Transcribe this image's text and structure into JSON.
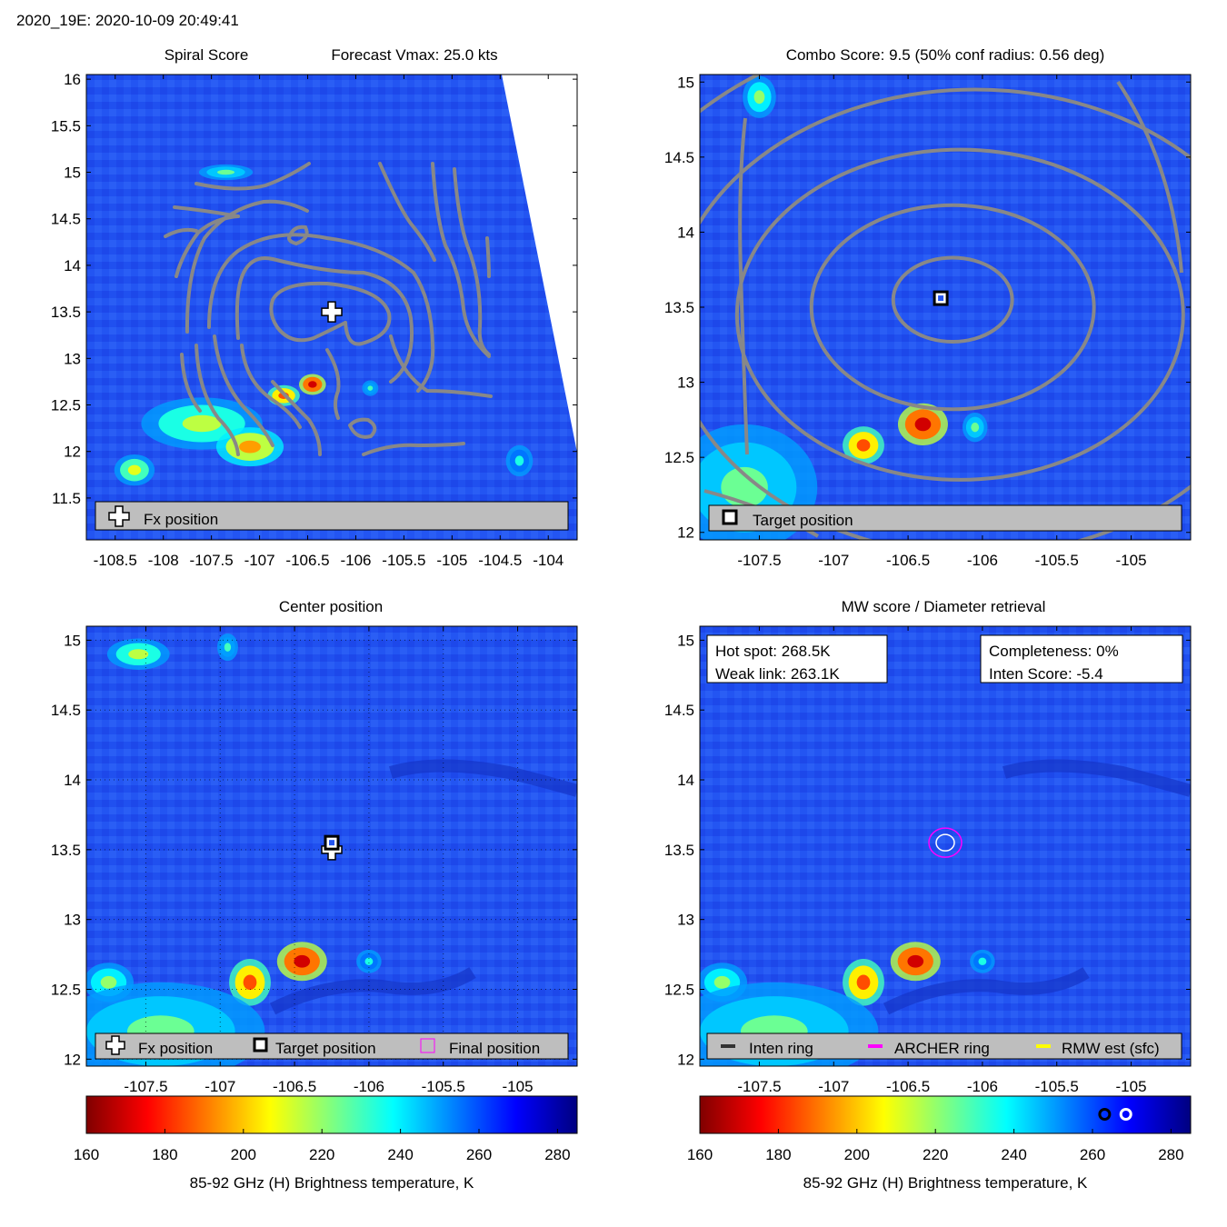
{
  "header": {
    "title": "2020_19E: 2020-10-09 20:49:41"
  },
  "colors": {
    "ocean": "#1f4ff0",
    "contour": "#888888",
    "legend_bg": "#bebebe",
    "archer_ring": "#ff00ff",
    "inten_ring": "#333333",
    "rmw": "#ffff00"
  },
  "chart_data": [
    {
      "type": "heatmap",
      "id": "spiral",
      "titles": [
        "Spiral Score",
        "Forecast Vmax: 25.0 kts"
      ],
      "xlim": [
        -108.8,
        -103.7
      ],
      "ylim": [
        11.05,
        16.05
      ],
      "xticks": [
        "-108.5",
        "-108",
        "-107.5",
        "-107",
        "-106.5",
        "-106",
        "-105.5",
        "-105",
        "-104.5",
        "-104"
      ],
      "yticks": [
        "11.5",
        "12",
        "12.5",
        "13",
        "13.5",
        "14",
        "14.5",
        "15",
        "15.5",
        "16"
      ],
      "xtick_values": [
        -108.5,
        -108,
        -107.5,
        -107,
        -106.5,
        -106,
        -105.5,
        -105,
        -104.5,
        -104
      ],
      "ytick_values": [
        11.5,
        12,
        12.5,
        13,
        13.5,
        14,
        14.5,
        15,
        15.5,
        16
      ],
      "markers": [
        {
          "kind": "fx-plus",
          "x": -106.25,
          "y": 13.5
        }
      ],
      "hotspots": [
        {
          "x": -107.6,
          "y": 12.3,
          "rx": 0.45,
          "ry": 0.2,
          "t": 215
        },
        {
          "x": -107.1,
          "y": 12.05,
          "rx": 0.25,
          "ry": 0.15,
          "t": 195
        },
        {
          "x": -106.75,
          "y": 12.6,
          "rx": 0.12,
          "ry": 0.08,
          "t": 185
        },
        {
          "x": -106.45,
          "y": 12.72,
          "rx": 0.1,
          "ry": 0.08,
          "t": 170
        },
        {
          "x": -105.85,
          "y": 12.68,
          "rx": 0.06,
          "ry": 0.06,
          "t": 230
        },
        {
          "x": -108.3,
          "y": 11.8,
          "rx": 0.15,
          "ry": 0.12,
          "t": 210
        },
        {
          "x": -107.35,
          "y": 15.0,
          "rx": 0.2,
          "ry": 0.06,
          "t": 225
        },
        {
          "x": -104.3,
          "y": 11.9,
          "rx": 0.1,
          "ry": 0.12,
          "t": 235
        }
      ],
      "legend": [
        "Fx position"
      ]
    },
    {
      "type": "heatmap",
      "id": "combo",
      "titles": [
        "Combo Score: 9.5  (50% conf radius: 0.56 deg)"
      ],
      "xlim": [
        -107.9,
        -104.6
      ],
      "ylim": [
        11.95,
        15.05
      ],
      "xticks": [
        "-107.5",
        "-107",
        "-106.5",
        "-106",
        "-105.5",
        "-105"
      ],
      "yticks": [
        "12",
        "12.5",
        "13",
        "13.5",
        "14",
        "14.5",
        "15"
      ],
      "xtick_values": [
        -107.5,
        -107,
        -106.5,
        -106,
        -105.5,
        -105
      ],
      "ytick_values": [
        12,
        12.5,
        13,
        13.5,
        14,
        14.5,
        15
      ],
      "markers": [
        {
          "kind": "target-square",
          "x": -106.28,
          "y": 13.56
        }
      ],
      "contour_rings": [
        {
          "x": -106.2,
          "y": 13.55,
          "rx": 0.4,
          "ry": 0.28
        },
        {
          "x": -106.2,
          "y": 13.5,
          "rx": 0.95,
          "ry": 0.68
        },
        {
          "x": -106.15,
          "y": 13.45,
          "rx": 1.5,
          "ry": 1.1
        },
        {
          "x": -106.05,
          "y": 13.4,
          "rx": 2.05,
          "ry": 1.55
        },
        {
          "x": -106.0,
          "y": 13.35,
          "rx": 2.7,
          "ry": 2.05
        }
      ],
      "hotspots": [
        {
          "x": -106.4,
          "y": 12.72,
          "rx": 0.12,
          "ry": 0.1,
          "t": 170
        },
        {
          "x": -106.8,
          "y": 12.58,
          "rx": 0.1,
          "ry": 0.09,
          "t": 185
        },
        {
          "x": -106.05,
          "y": 12.7,
          "rx": 0.06,
          "ry": 0.07,
          "t": 225
        },
        {
          "x": -107.6,
          "y": 12.3,
          "rx": 0.35,
          "ry": 0.3,
          "t": 225
        },
        {
          "x": -107.5,
          "y": 14.9,
          "rx": 0.08,
          "ry": 0.1,
          "t": 220
        }
      ],
      "legend": [
        "Target position"
      ]
    },
    {
      "type": "heatmap",
      "id": "center",
      "titles": [
        "Center position"
      ],
      "xlim": [
        -107.9,
        -104.6
      ],
      "ylim": [
        11.95,
        15.1
      ],
      "xticks": [
        "-107.5",
        "-107",
        "-106.5",
        "-106",
        "-105.5",
        "-105"
      ],
      "yticks": [
        "12",
        "12.5",
        "13",
        "13.5",
        "14",
        "14.5",
        "15"
      ],
      "xtick_values": [
        -107.5,
        -107,
        -106.5,
        -106,
        -105.5,
        -105
      ],
      "ytick_values": [
        12,
        12.5,
        13,
        13.5,
        14,
        14.5,
        15
      ],
      "markers": [
        {
          "kind": "fx-plus",
          "x": -106.25,
          "y": 13.5
        },
        {
          "kind": "target-square",
          "x": -106.25,
          "y": 13.55
        }
      ],
      "hotspots": [
        {
          "x": -106.45,
          "y": 12.7,
          "rx": 0.12,
          "ry": 0.1,
          "t": 170
        },
        {
          "x": -106.8,
          "y": 12.55,
          "rx": 0.1,
          "ry": 0.12,
          "t": 185
        },
        {
          "x": -106.0,
          "y": 12.7,
          "rx": 0.06,
          "ry": 0.06,
          "t": 235
        },
        {
          "x": -107.75,
          "y": 12.55,
          "rx": 0.12,
          "ry": 0.1,
          "t": 220
        },
        {
          "x": -107.4,
          "y": 12.2,
          "rx": 0.5,
          "ry": 0.25,
          "t": 225
        },
        {
          "x": -107.55,
          "y": 14.9,
          "rx": 0.15,
          "ry": 0.08,
          "t": 215
        },
        {
          "x": -106.95,
          "y": 14.95,
          "rx": 0.05,
          "ry": 0.07,
          "t": 230
        }
      ],
      "legend": [
        "Fx position",
        "Target position",
        "Final position"
      ]
    },
    {
      "type": "heatmap",
      "id": "mw",
      "titles": [
        "MW score / Diameter retrieval"
      ],
      "xlim": [
        -107.9,
        -104.6
      ],
      "ylim": [
        11.95,
        15.1
      ],
      "xticks": [
        "-107.5",
        "-107",
        "-106.5",
        "-106",
        "-105.5",
        "-105"
      ],
      "yticks": [
        "12",
        "12.5",
        "13",
        "13.5",
        "14",
        "14.5",
        "15"
      ],
      "xtick_values": [
        -107.5,
        -107,
        -106.5,
        -106,
        -105.5,
        -105
      ],
      "ytick_values": [
        12,
        12.5,
        13,
        13.5,
        14,
        14.5,
        15
      ],
      "markers": [
        {
          "kind": "archer-ring",
          "x": -106.25,
          "y": 13.55
        },
        {
          "kind": "rmw-ring",
          "x": -106.25,
          "y": 13.55
        }
      ],
      "hotspots": [
        {
          "x": -106.45,
          "y": 12.7,
          "rx": 0.12,
          "ry": 0.1,
          "t": 170
        },
        {
          "x": -106.8,
          "y": 12.55,
          "rx": 0.1,
          "ry": 0.12,
          "t": 185
        },
        {
          "x": -106.0,
          "y": 12.7,
          "rx": 0.06,
          "ry": 0.06,
          "t": 235
        },
        {
          "x": -107.75,
          "y": 12.55,
          "rx": 0.12,
          "ry": 0.1,
          "t": 220
        },
        {
          "x": -107.4,
          "y": 12.2,
          "rx": 0.5,
          "ry": 0.25,
          "t": 225
        },
        {
          "x": -107.55,
          "y": 14.9,
          "rx": 0.15,
          "ry": 0.08,
          "t": 215
        }
      ],
      "info_left": [
        "Hot spot: 268.5K",
        "Weak link: 263.1K"
      ],
      "info_right": [
        "Completeness: 0%",
        "Inten Score: -5.4"
      ],
      "legend": [
        "Inten ring",
        "ARCHER ring",
        "RMW est (sfc)"
      ]
    }
  ],
  "colorbar": {
    "range": [
      160,
      285
    ],
    "ticks": [
      "160",
      "180",
      "200",
      "220",
      "240",
      "260",
      "280"
    ],
    "tick_values": [
      160,
      180,
      200,
      220,
      240,
      260,
      280
    ],
    "label": "85-92 GHz (H) Brightness temperature, K",
    "markers": [
      {
        "kind": "weak-link",
        "value": 263.1
      },
      {
        "kind": "hot-spot",
        "value": 268.5
      }
    ]
  }
}
